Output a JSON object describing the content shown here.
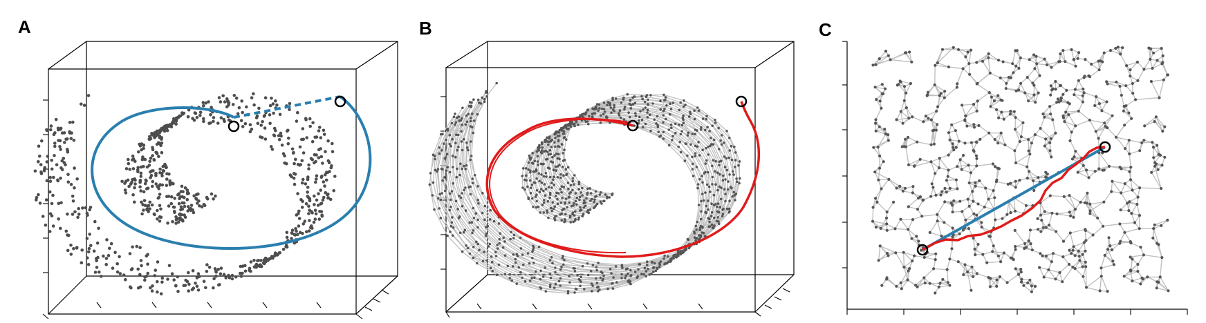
{
  "panels": [
    {
      "letter": "A",
      "description_role": "swiss-roll-euclidean"
    },
    {
      "letter": "B",
      "description_role": "swiss-roll-graph"
    },
    {
      "letter": "C",
      "description_role": "unrolled-embedding"
    }
  ],
  "colors": {
    "points": "#4d4d4d",
    "edges": "#c0c0c0",
    "geodesic_true": "#2a7fae",
    "graph_path": "#e01b1b",
    "box": "#000000",
    "endpoint": "#000000"
  }
}
